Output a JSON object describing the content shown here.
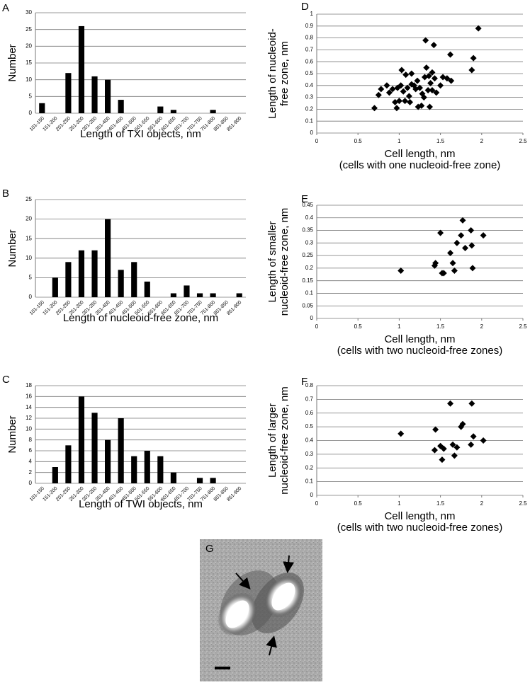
{
  "chart_data": [
    {
      "type": "bar",
      "label": "A",
      "ylabel": "Number",
      "xlabel": "Length of TXI objects, nm",
      "color": "#000000",
      "grid": true,
      "categories": [
        "101-150",
        "151-200",
        "201-250",
        "251-300",
        "301-350",
        "351-400",
        "401-450",
        "451-500",
        "501-550",
        "551-600",
        "601-650",
        "651-700",
        "701-750",
        "751-800",
        "801-850",
        "851-900"
      ],
      "values": [
        3,
        0,
        12,
        26,
        11,
        10,
        4,
        0,
        0,
        2,
        1,
        0,
        0,
        1,
        0,
        0
      ],
      "ylim": [
        0,
        30
      ],
      "yticks": [
        0,
        5,
        10,
        15,
        20,
        25,
        30
      ]
    },
    {
      "type": "bar",
      "label": "B",
      "ylabel": "Number",
      "xlabel": "Length of nucleoid-free zone, nm",
      "color": "#000000",
      "grid": true,
      "categories": [
        "101-150",
        "151-200",
        "201-250",
        "251-300",
        "301-350",
        "351-400",
        "401-450",
        "451-500",
        "501-550",
        "551-600",
        "601-650",
        "651-700",
        "701-750",
        "751-800",
        "801-850",
        "851-900"
      ],
      "values": [
        0,
        5,
        9,
        12,
        12,
        20,
        7,
        9,
        4,
        0,
        1,
        3,
        1,
        1,
        0,
        1
      ],
      "ylim": [
        0,
        25
      ],
      "yticks": [
        0,
        5,
        10,
        15,
        20,
        25
      ]
    },
    {
      "type": "bar",
      "label": "C",
      "ylabel": "Number",
      "xlabel": "Length of TWI objects, nm",
      "color": "#000000",
      "grid": true,
      "categories": [
        "101-150",
        "151-200",
        "201-250",
        "251-300",
        "301-350",
        "351-400",
        "401-450",
        "451-500",
        "501-550",
        "551-600",
        "601-650",
        "651-700",
        "701-750",
        "751-800",
        "801-850",
        "851-900"
      ],
      "values": [
        0,
        3,
        7,
        16,
        13,
        8,
        12,
        5,
        6,
        5,
        2,
        0,
        1,
        1,
        0,
        0
      ],
      "ylim": [
        0,
        18
      ],
      "yticks": [
        0,
        2,
        4,
        6,
        8,
        10,
        12,
        14,
        16,
        18
      ]
    },
    {
      "type": "scatter",
      "label": "D",
      "ylabel": [
        "Length of nucleoid-",
        "free zone, nm"
      ],
      "xlabel": [
        "Cell length, nm",
        "(cells with one nucleoid-free zone)"
      ],
      "color": "#000000",
      "grid": true,
      "x": [
        0.7,
        0.75,
        0.78,
        0.85,
        0.88,
        0.92,
        0.95,
        0.97,
        0.98,
        1.0,
        1.02,
        1.03,
        1.05,
        1.07,
        1.08,
        1.1,
        1.12,
        1.13,
        1.15,
        1.15,
        1.18,
        1.2,
        1.22,
        1.23,
        1.25,
        1.27,
        1.28,
        1.3,
        1.31,
        1.32,
        1.33,
        1.35,
        1.36,
        1.37,
        1.38,
        1.4,
        1.4,
        1.42,
        1.43,
        1.45,
        1.5,
        1.53,
        1.58,
        1.62,
        1.63,
        1.88,
        1.9,
        1.96
      ],
      "values": [
        0.21,
        0.32,
        0.37,
        0.4,
        0.34,
        0.37,
        0.26,
        0.21,
        0.38,
        0.27,
        0.4,
        0.53,
        0.35,
        0.27,
        0.49,
        0.38,
        0.31,
        0.26,
        0.5,
        0.41,
        0.4,
        0.37,
        0.44,
        0.22,
        0.38,
        0.23,
        0.33,
        0.3,
        0.47,
        0.78,
        0.55,
        0.36,
        0.48,
        0.22,
        0.42,
        0.36,
        0.51,
        0.74,
        0.46,
        0.34,
        0.4,
        0.47,
        0.46,
        0.66,
        0.44,
        0.53,
        0.63,
        0.88
      ],
      "xlim": [
        0,
        2.5
      ],
      "xticks": [
        0,
        0.5,
        1,
        1.5,
        2,
        2.5
      ],
      "ylim": [
        0,
        1
      ],
      "yticks": [
        0,
        0.1,
        0.2,
        0.3,
        0.4,
        0.5,
        0.6,
        0.7,
        0.8,
        0.9,
        1
      ]
    },
    {
      "type": "scatter",
      "label": "E",
      "ylabel": [
        "Length of smaller",
        "nucleoid-free zone, nm"
      ],
      "xlabel": [
        "Cell length, nm",
        "(cells with two nucleoid-free zones)"
      ],
      "color": "#000000",
      "grid": true,
      "x": [
        1.02,
        1.43,
        1.44,
        1.5,
        1.52,
        1.54,
        1.62,
        1.65,
        1.67,
        1.7,
        1.75,
        1.77,
        1.8,
        1.87,
        1.88,
        1.89,
        2.02
      ],
      "values": [
        0.19,
        0.21,
        0.22,
        0.34,
        0.18,
        0.18,
        0.26,
        0.22,
        0.19,
        0.3,
        0.33,
        0.39,
        0.28,
        0.35,
        0.29,
        0.2,
        0.33
      ],
      "xlim": [
        0,
        2.5
      ],
      "xticks": [
        0,
        0.5,
        1,
        1.5,
        2,
        2.5
      ],
      "ylim": [
        0,
        0.45
      ],
      "yticks": [
        0,
        0.05,
        0.1,
        0.15,
        0.2,
        0.25,
        0.3,
        0.35,
        0.4,
        0.45
      ]
    },
    {
      "type": "scatter",
      "label": "F",
      "ylabel": [
        "Length of larger",
        "nucleoid-free zone, nm"
      ],
      "xlabel": [
        "Cell length, nm",
        "(cells with two nucleoid-free zones)"
      ],
      "color": "#000000",
      "grid": true,
      "x": [
        1.02,
        1.43,
        1.44,
        1.5,
        1.52,
        1.54,
        1.62,
        1.65,
        1.67,
        1.7,
        1.75,
        1.77,
        1.87,
        1.88,
        1.9,
        2.02
      ],
      "values": [
        0.45,
        0.33,
        0.48,
        0.36,
        0.26,
        0.34,
        0.67,
        0.37,
        0.29,
        0.35,
        0.5,
        0.52,
        0.37,
        0.67,
        0.43,
        0.4
      ],
      "xlim": [
        0,
        2.5
      ],
      "xticks": [
        0,
        0.5,
        1,
        1.5,
        2,
        2.5
      ],
      "ylim": [
        0,
        0.8
      ],
      "yticks": [
        0,
        0.1,
        0.2,
        0.3,
        0.4,
        0.5,
        0.6,
        0.7,
        0.8
      ]
    }
  ],
  "image_panel": {
    "label": "G"
  }
}
